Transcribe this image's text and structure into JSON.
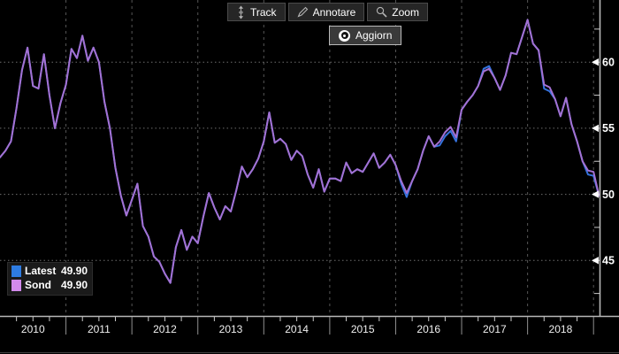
{
  "toolbar": {
    "buttons": [
      {
        "label": "Track",
        "icon": "track-crosshair-icon"
      },
      {
        "label": "Annotare",
        "icon": "pencil-icon"
      },
      {
        "label": "Zoom",
        "icon": "magnifier-icon"
      }
    ],
    "refresh_button": {
      "label": "Aggiorn",
      "icon": "record-dot-icon"
    }
  },
  "legend": {
    "position": "bottom-left",
    "items": [
      {
        "label": "Latest",
        "value": "49.90",
        "color": "#2e7ce2"
      },
      {
        "label": "Sond",
        "value": "49.90",
        "color": "#d28aec"
      }
    ]
  },
  "colors": {
    "background": "#000000",
    "latest_line": "#3572dd",
    "sond_line": "#a471d3",
    "grid": "#6e6e6e",
    "year_grid": "#565656",
    "axis": "#b8b8b8",
    "tick": "#c9c9c9",
    "label": "#ffffff"
  },
  "chart_data": {
    "type": "line",
    "title": "",
    "xlabel": "",
    "ylabel": "",
    "x_unit": "month",
    "x_start": "2010-01",
    "x_tick_labels": [
      "2010",
      "2011",
      "2012",
      "2013",
      "2014",
      "2015",
      "2016",
      "2017",
      "2018"
    ],
    "y_ticks": [
      45,
      50,
      55,
      60
    ],
    "y_minor_tick_step": 2.5,
    "x_minor_tick_months": 3,
    "ylim": [
      40.8,
      64.7
    ],
    "grid": "dotted horizontal at y ticks, dashed vertical at year boundaries",
    "legend_position": "bottom-left",
    "series": [
      {
        "name": "Latest",
        "color": "#3572dd",
        "last_value": 49.9,
        "values": [
          52.8,
          53.3,
          54.0,
          56.5,
          59.4,
          61.1,
          58.2,
          58.0,
          60.6,
          57.5,
          55.0,
          56.9,
          58.3,
          61.0,
          60.3,
          62.0,
          60.1,
          61.1,
          60.0,
          57.0,
          55.0,
          52.0,
          49.9,
          48.4,
          49.6,
          50.8,
          47.6,
          46.8,
          45.3,
          44.9,
          44.0,
          43.3,
          46.0,
          47.3,
          45.8,
          46.8,
          46.3,
          48.3,
          50.1,
          49.0,
          48.1,
          49.1,
          48.7,
          50.3,
          52.1,
          51.3,
          51.9,
          52.7,
          54.0,
          56.2,
          53.9,
          54.2,
          53.8,
          52.6,
          53.3,
          52.9,
          51.5,
          50.5,
          51.9,
          50.2,
          51.2,
          51.2,
          51.0,
          52.4,
          51.6,
          51.9,
          51.7,
          52.4,
          53.1,
          52.0,
          52.4,
          53.0,
          52.2,
          50.8,
          49.8,
          51.0,
          51.9,
          53.3,
          54.4,
          53.6,
          53.7,
          54.4,
          54.8,
          54.0,
          56.4,
          57.0,
          57.5,
          58.2,
          59.5,
          59.7,
          58.8,
          57.9,
          59.0,
          60.7,
          60.6,
          61.9,
          63.2,
          61.4,
          60.9,
          58.0,
          57.8,
          57.2,
          55.9,
          57.3,
          55.3,
          54.0,
          52.5,
          51.5,
          51.4,
          49.9
        ]
      },
      {
        "name": "Sond",
        "color": "#a471d3",
        "last_value": 49.9,
        "values": [
          52.8,
          53.3,
          54.0,
          56.5,
          59.4,
          61.1,
          58.2,
          58.0,
          60.6,
          57.5,
          55.0,
          56.9,
          58.3,
          61.0,
          60.3,
          62.0,
          60.1,
          61.1,
          60.0,
          57.0,
          55.0,
          52.0,
          49.9,
          48.4,
          49.6,
          50.8,
          47.6,
          46.8,
          45.3,
          44.9,
          44.0,
          43.3,
          46.0,
          47.3,
          45.8,
          46.8,
          46.3,
          48.3,
          50.1,
          49.0,
          48.1,
          49.1,
          48.7,
          50.3,
          52.1,
          51.3,
          51.9,
          52.7,
          54.0,
          56.2,
          53.9,
          54.2,
          53.8,
          52.6,
          53.3,
          52.9,
          51.5,
          50.5,
          51.9,
          50.2,
          51.2,
          51.2,
          51.0,
          52.4,
          51.6,
          51.9,
          51.7,
          52.4,
          53.1,
          52.0,
          52.4,
          53.0,
          52.2,
          51.0,
          50.1,
          51.0,
          51.9,
          53.3,
          54.4,
          53.6,
          54.0,
          54.7,
          55.1,
          54.3,
          56.4,
          57.0,
          57.5,
          58.2,
          59.3,
          59.5,
          58.8,
          57.9,
          59.0,
          60.7,
          60.6,
          61.9,
          63.2,
          61.4,
          60.9,
          58.3,
          58.1,
          57.2,
          55.9,
          57.3,
          55.3,
          54.0,
          52.5,
          51.8,
          51.7,
          49.9
        ]
      }
    ]
  }
}
